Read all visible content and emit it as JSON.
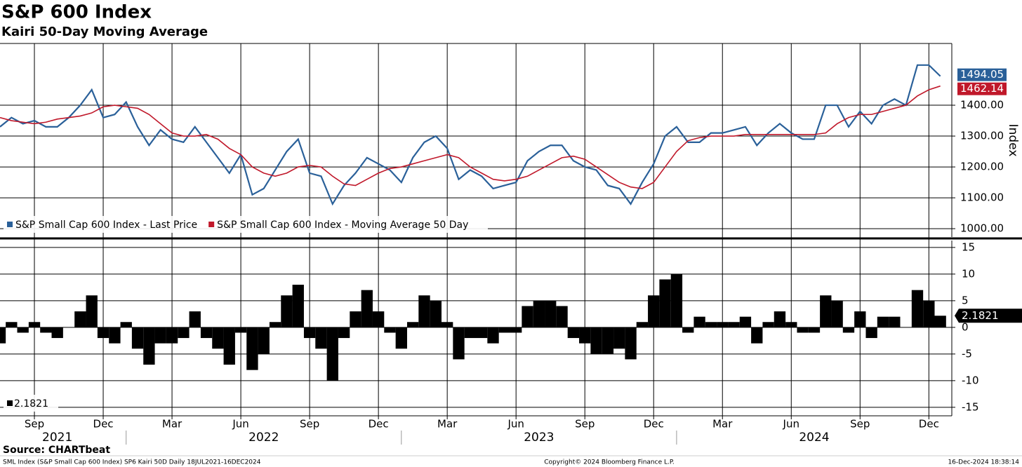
{
  "chart_data": [
    {
      "type": "line",
      "title": "S&P 600 Index",
      "subtitle": "Kairi 50-Day Moving Average",
      "y_label": "Index",
      "ylim": [
        973,
        1600
      ],
      "yticks": [
        {
          "value": 1000,
          "label": "1000.00"
        },
        {
          "value": 1100,
          "label": "1100.00"
        },
        {
          "value": 1200,
          "label": "1200.00"
        },
        {
          "value": 1300,
          "label": "1300.00"
        },
        {
          "value": 1400,
          "label": "1400.00"
        }
      ],
      "grid": true,
      "legend": "lower left",
      "series": [
        {
          "name": "S&P Small Cap 600 Index - Last Price",
          "color": "#2a6099",
          "values": [
            1330,
            1360,
            1340,
            1350,
            1330,
            1330,
            1360,
            1400,
            1450,
            1360,
            1370,
            1410,
            1330,
            1270,
            1320,
            1290,
            1280,
            1330,
            1280,
            1230,
            1180,
            1240,
            1110,
            1130,
            1190,
            1250,
            1290,
            1180,
            1170,
            1080,
            1140,
            1180,
            1230,
            1210,
            1190,
            1150,
            1230,
            1280,
            1300,
            1260,
            1160,
            1190,
            1170,
            1130,
            1140,
            1150,
            1220,
            1250,
            1270,
            1270,
            1220,
            1200,
            1190,
            1140,
            1130,
            1080,
            1150,
            1210,
            1300,
            1330,
            1280,
            1280,
            1310,
            1310,
            1320,
            1330,
            1270,
            1310,
            1340,
            1310,
            1290,
            1290,
            1400,
            1400,
            1330,
            1380,
            1340,
            1400,
            1420,
            1400,
            1530,
            1530,
            1494.05
          ]
        },
        {
          "name": "S&P Small Cap 600 Index - Moving Average 50 Day",
          "color": "#c0182a",
          "values": [
            1360,
            1350,
            1345,
            1340,
            1345,
            1355,
            1360,
            1365,
            1375,
            1395,
            1400,
            1395,
            1390,
            1370,
            1340,
            1310,
            1300,
            1300,
            1305,
            1290,
            1260,
            1240,
            1200,
            1180,
            1170,
            1180,
            1200,
            1205,
            1200,
            1170,
            1145,
            1140,
            1160,
            1180,
            1195,
            1200,
            1210,
            1220,
            1230,
            1240,
            1230,
            1200,
            1180,
            1160,
            1155,
            1160,
            1170,
            1190,
            1210,
            1230,
            1235,
            1225,
            1200,
            1175,
            1150,
            1135,
            1130,
            1150,
            1200,
            1250,
            1285,
            1295,
            1300,
            1300,
            1300,
            1305,
            1305,
            1305,
            1305,
            1305,
            1305,
            1305,
            1310,
            1340,
            1360,
            1370,
            1370,
            1380,
            1390,
            1400,
            1430,
            1450,
            1462.14
          ]
        }
      ]
    },
    {
      "type": "bar",
      "color": "#000000",
      "ylim": [
        -16.6,
        16.3
      ],
      "yticks": [
        -15,
        -10,
        -5,
        0,
        5,
        10,
        15
      ],
      "legend": "lower left",
      "values": [
        -3,
        1,
        -1,
        1,
        -1,
        -2,
        0,
        3,
        6,
        -2,
        -3,
        1,
        -4,
        -7,
        -3,
        -3,
        -2,
        3,
        -2,
        -4,
        -7,
        -1,
        -8,
        -5,
        1,
        6,
        8,
        -2,
        -4,
        -10,
        -2,
        3,
        7,
        3,
        -1,
        -4,
        1,
        6,
        5,
        1,
        -6,
        -2,
        -2,
        -3,
        -1,
        -1,
        4,
        5,
        5,
        4,
        -2,
        -3,
        -5,
        -5,
        -4,
        -6,
        1,
        6,
        9,
        10,
        -1,
        2,
        1,
        1,
        1,
        2,
        -3,
        1,
        3,
        1,
        -1,
        -1,
        6,
        5,
        -1,
        3,
        -2,
        2,
        2,
        0,
        7,
        5,
        2.1821
      ],
      "xlim": [
        0,
        83
      ],
      "xticks": [
        {
          "value": 3,
          "label": "Sep"
        },
        {
          "value": 9,
          "label": "Dec"
        },
        {
          "value": 15,
          "label": "Mar"
        },
        {
          "value": 21,
          "label": "Jun"
        },
        {
          "value": 27,
          "label": "Sep"
        },
        {
          "value": 33,
          "label": "Dec"
        },
        {
          "value": 39,
          "label": "Mar"
        },
        {
          "value": 45,
          "label": "Jun"
        },
        {
          "value": 51,
          "label": "Sep"
        },
        {
          "value": 57,
          "label": "Dec"
        },
        {
          "value": 63,
          "label": "Mar"
        },
        {
          "value": 69,
          "label": "Jun"
        },
        {
          "value": 75,
          "label": "Sep"
        },
        {
          "value": 81,
          "label": "Dec"
        }
      ],
      "year_labels": [
        {
          "value": 5,
          "label": "2021"
        },
        {
          "value": 23,
          "label": "2022"
        },
        {
          "value": 47,
          "label": "2023"
        },
        {
          "value": 71,
          "label": "2024"
        }
      ],
      "year_ticks": [
        11,
        35,
        59
      ]
    }
  ],
  "footer": {
    "source": "Source: CHARTbeat",
    "description": "SML Index (S&P Small Cap 600 Index) SP6 Kairi 50D  Daily 18JUL2021-16DEC2024",
    "copyright": "Copyright© 2024 Bloomberg Finance L.P.",
    "timestamp": "16-Dec-2024 18:38:14"
  }
}
